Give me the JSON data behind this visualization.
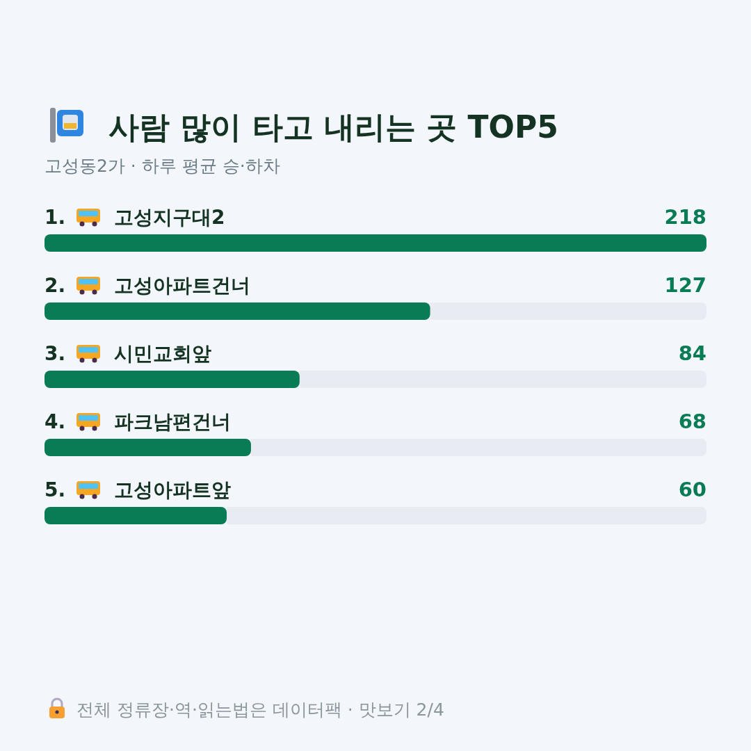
{
  "chart_data": {
    "type": "bar",
    "orientation": "horizontal",
    "title": "사람 많이 타고 내리는 곳 TOP5",
    "subtitle": "고성동2가 · 하루 평균 승·하차",
    "categories": [
      "1. 고성지구대2",
      "2. 고성아파트건너",
      "3. 시민교회앞",
      "4. 파크남편건너",
      "5. 고성아파트앞"
    ],
    "values": [
      218,
      127,
      84,
      68,
      60
    ],
    "color": "#0a7c55",
    "xlim": [
      0,
      218
    ],
    "data_labels": true,
    "annotations": [
      "전체 정류장·역·읽는법은 데이터팩 · 맛보기 2/4"
    ]
  }
}
